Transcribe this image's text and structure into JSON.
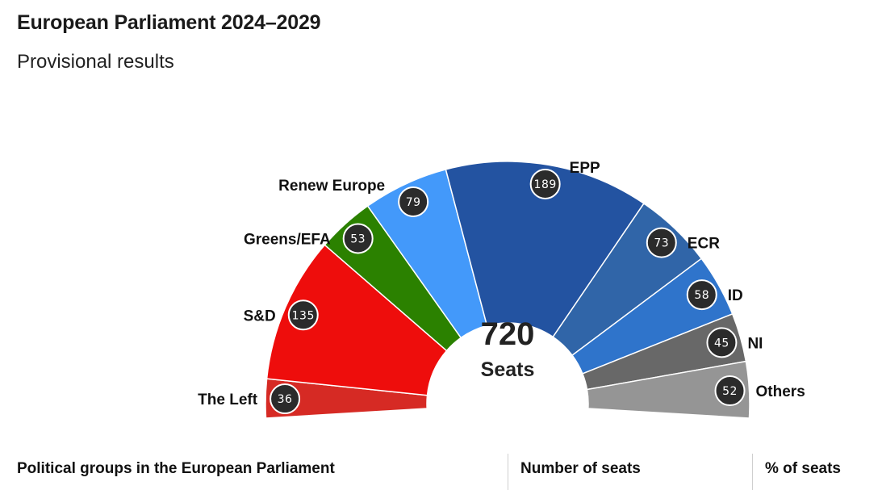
{
  "title": "European Parliament 2024–2029",
  "subtitle": "Provisional results",
  "chart_data": {
    "type": "pie",
    "variant": "hemicycle",
    "title": "European Parliament 2024–2029",
    "subtitle": "Provisional results",
    "total": 720,
    "total_label": "Seats",
    "segments": [
      {
        "name": "The Left",
        "seats": 36,
        "color": "#d62a24"
      },
      {
        "name": "S&D",
        "seats": 135,
        "color": "#ee0d0c"
      },
      {
        "name": "Greens/EFA",
        "seats": 53,
        "color": "#2b8100"
      },
      {
        "name": "Renew Europe",
        "seats": 79,
        "color": "#4399fa"
      },
      {
        "name": "EPP",
        "seats": 189,
        "color": "#2353a1"
      },
      {
        "name": "ECR",
        "seats": 73,
        "color": "#3065a8"
      },
      {
        "name": "ID",
        "seats": 58,
        "color": "#2f74cb"
      },
      {
        "name": "NI",
        "seats": 45,
        "color": "#686868"
      },
      {
        "name": "Others",
        "seats": 52,
        "color": "#959595"
      }
    ]
  },
  "table": {
    "columns": [
      "Political groups in the European Parliament",
      "Number of seats",
      "% of seats"
    ]
  }
}
